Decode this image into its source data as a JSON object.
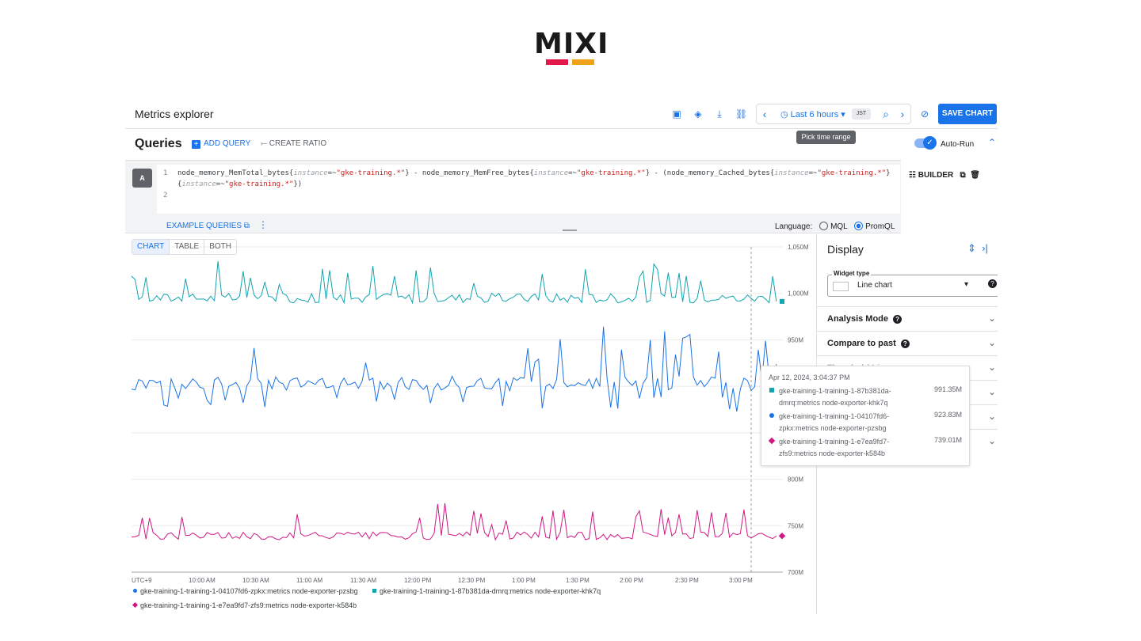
{
  "logo": {
    "text": "MIXI"
  },
  "header": {
    "title": "Metrics explorer",
    "time_range": "Last 6 hours",
    "timezone": "JST",
    "save_label": "SAVE CHART",
    "tooltip": "Pick time range"
  },
  "queries": {
    "title": "Queries",
    "add_query": "ADD QUERY",
    "create_ratio": "CREATE RATIO",
    "auto_run": "Auto-Run",
    "query_badge": "A",
    "line1_num": "1",
    "line2_num": "2",
    "example_queries": "EXAMPLE QUERIES",
    "language_label": "Language:",
    "lang_mql": "MQL",
    "lang_promql": "PromQL",
    "builder": "BUILDER"
  },
  "view_tabs": [
    "CHART",
    "TABLE",
    "BOTH"
  ],
  "chart_data": {
    "type": "line",
    "x_ticks": [
      "UTC+9",
      "10:00 AM",
      "10:30 AM",
      "11:00 AM",
      "11:30 AM",
      "12:00 PM",
      "12:30 PM",
      "1:00 PM",
      "1:30 PM",
      "2:00 PM",
      "2:30 PM",
      "3:00 PM"
    ],
    "y_ticks": [
      "1,050M",
      "1,000M",
      "950M",
      "900M",
      "850M",
      "800M",
      "750M",
      "700M"
    ],
    "ylim": [
      700,
      1050
    ],
    "series": [
      {
        "name": "gke-training-1-training-1-87b381da-dmrq:metrics node-exporter-khk7q",
        "color": "#12a4af",
        "base": 995,
        "spike": 30,
        "last": 991.35
      },
      {
        "name": "gke-training-1-training-1-04107fd6-zpkx:metrics node-exporter-pzsbg",
        "color": "#1a73e8",
        "base": 903,
        "spike": 45,
        "last": 923.83
      },
      {
        "name": "gke-training-1-training-1-e7ea9fd7-zfs9:metrics node-exporter-k584b",
        "color": "#d01884",
        "base": 739,
        "spike": 25,
        "last": 739.01
      }
    ]
  },
  "display": {
    "title": "Display",
    "widget_type_label": "Widget type",
    "widget_type_value": "Line chart",
    "rows": [
      "Analysis Mode",
      "Compare to past",
      "Threshold Line",
      "",
      "",
      ""
    ]
  },
  "hover": {
    "time": "Apr 12, 2024, 3:04:37 PM",
    "rows": [
      {
        "name": "gke-training-1-training-1-87b381da-dmrq:metrics node-exporter-khk7q",
        "value": "991.35M",
        "color": "#12a4af"
      },
      {
        "name": "gke-training-1-training-1-04107fd6-zpkx:metrics node-exporter-pzsbg",
        "value": "923.83M",
        "color": "#1a73e8"
      },
      {
        "name": "gke-training-1-training-1-e7ea9fd7-zfs9:metrics node-exporter-k584b",
        "value": "739.01M",
        "color": "#d01884"
      }
    ]
  },
  "legend": [
    {
      "name": "gke-training-1-training-1-04107fd6-zpkx:metrics node-exporter-pzsbg",
      "color": "#1a73e8"
    },
    {
      "name": "gke-training-1-training-1-87b381da-dmrq:metrics node-exporter-khk7q",
      "color": "#12a4af"
    },
    {
      "name": "gke-training-1-training-1-e7ea9fd7-zfs9:metrics node-exporter-k584b",
      "color": "#d01884"
    }
  ]
}
